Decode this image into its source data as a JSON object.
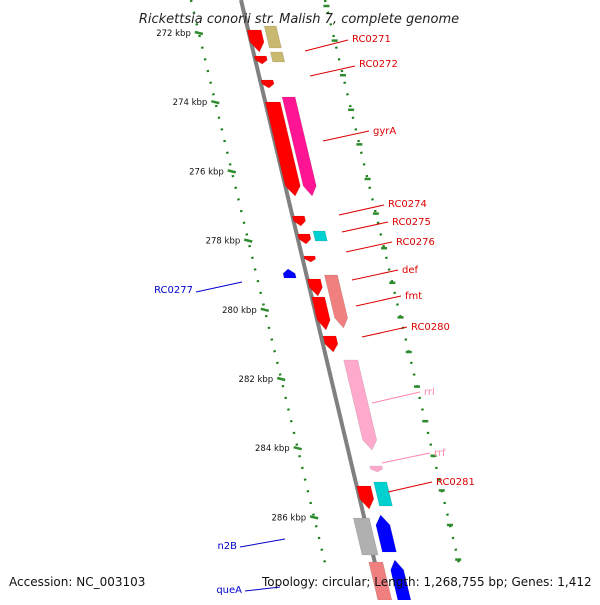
{
  "title": "Rickettsia conorii str. Malish 7, complete genome",
  "accession_text": "Accession: NC_003103",
  "topology_text": "Topology: circular; Length: 1,268,755 bp; Genes: 1,412",
  "colors": {
    "backbone": "#808080",
    "ticks": "#2e8b2e",
    "dots": "#1a7f1a",
    "red_gene": "#ff0000",
    "pink_gene": "#ff1493",
    "salmon_gene": "#f08080",
    "light_pink_gene": "#ffaacc",
    "olive_gene": "#c8b870",
    "cyan_gene": "#00d0d0",
    "blue_gene": "#0000ff",
    "gray_gene": "#b0b0b0",
    "label_red": "#dd0000",
    "label_pink": "#ff88aa",
    "label_blue": "#0000cc"
  },
  "scale": {
    "unit": "kbp",
    "ticks": [
      {
        "label": "272 kbp"
      },
      {
        "label": "274 kbp"
      },
      {
        "label": "276 kbp"
      },
      {
        "label": "278 kbp"
      },
      {
        "label": "280 kbp"
      },
      {
        "label": "282 kbp"
      },
      {
        "label": "284 kbp"
      },
      {
        "label": "286 kbp"
      }
    ]
  },
  "gene_labels": [
    {
      "name": "RC0271",
      "color": "red"
    },
    {
      "name": "RC0272",
      "color": "red"
    },
    {
      "name": "gyrA",
      "color": "red"
    },
    {
      "name": "RC0274",
      "color": "red"
    },
    {
      "name": "RC0275",
      "color": "red"
    },
    {
      "name": "RC0276",
      "color": "red"
    },
    {
      "name": "RC0277",
      "color": "blue"
    },
    {
      "name": "def",
      "color": "red"
    },
    {
      "name": "fmt",
      "color": "red"
    },
    {
      "name": "RC0280",
      "color": "red"
    },
    {
      "name": "rrl",
      "color": "pink"
    },
    {
      "name": "rrf",
      "color": "pink"
    },
    {
      "name": "RC0281",
      "color": "red"
    },
    {
      "name": "n2B",
      "color": "blue"
    },
    {
      "name": "queA",
      "color": "blue"
    }
  ]
}
